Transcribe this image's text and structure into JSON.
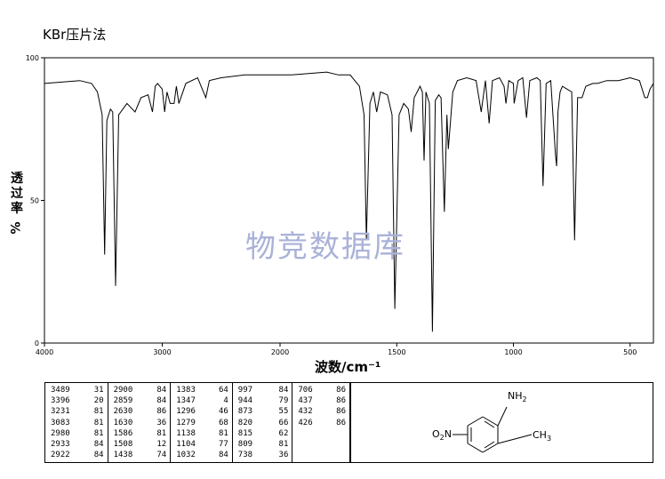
{
  "method_label": "KBr压片法",
  "watermark": "物竞数据库",
  "chart_data": {
    "type": "line",
    "xlabel": "波数/cm⁻¹",
    "ylabel_chars": [
      "透",
      "过",
      "率"
    ],
    "ylabel_unit": "%",
    "x_reversed": true,
    "xlim": [
      4000,
      400
    ],
    "ylim": [
      0,
      100
    ],
    "xticks": [
      4000,
      3000,
      2000,
      1500,
      1000,
      500
    ],
    "yticks": [
      0,
      50,
      100
    ],
    "grid": false,
    "series": [
      {
        "values": [
          [
            4000,
            91
          ],
          [
            3700,
            92
          ],
          [
            3600,
            91
          ],
          [
            3550,
            88
          ],
          [
            3510,
            80
          ],
          [
            3489,
            31
          ],
          [
            3470,
            78
          ],
          [
            3440,
            82
          ],
          [
            3420,
            81
          ],
          [
            3396,
            20
          ],
          [
            3370,
            80
          ],
          [
            3300,
            84
          ],
          [
            3231,
            81
          ],
          [
            3180,
            86
          ],
          [
            3120,
            87
          ],
          [
            3083,
            81
          ],
          [
            3060,
            90
          ],
          [
            3040,
            91
          ],
          [
            3000,
            89
          ],
          [
            2980,
            81
          ],
          [
            2960,
            88
          ],
          [
            2933,
            84
          ],
          [
            2922,
            84
          ],
          [
            2900,
            84
          ],
          [
            2880,
            90
          ],
          [
            2859,
            84
          ],
          [
            2800,
            91
          ],
          [
            2700,
            93
          ],
          [
            2630,
            86
          ],
          [
            2600,
            92
          ],
          [
            2500,
            93
          ],
          [
            2300,
            94
          ],
          [
            2100,
            94
          ],
          [
            1950,
            94
          ],
          [
            1800,
            95
          ],
          [
            1750,
            94
          ],
          [
            1700,
            94
          ],
          [
            1660,
            90
          ],
          [
            1640,
            80
          ],
          [
            1630,
            36
          ],
          [
            1615,
            84
          ],
          [
            1600,
            88
          ],
          [
            1586,
            81
          ],
          [
            1570,
            88
          ],
          [
            1540,
            87
          ],
          [
            1520,
            80
          ],
          [
            1508,
            12
          ],
          [
            1490,
            80
          ],
          [
            1470,
            84
          ],
          [
            1450,
            82
          ],
          [
            1438,
            74
          ],
          [
            1425,
            86
          ],
          [
            1400,
            90
          ],
          [
            1390,
            88
          ],
          [
            1383,
            64
          ],
          [
            1375,
            88
          ],
          [
            1360,
            84
          ],
          [
            1347,
            4
          ],
          [
            1335,
            85
          ],
          [
            1320,
            87
          ],
          [
            1310,
            86
          ],
          [
            1296,
            46
          ],
          [
            1285,
            80
          ],
          [
            1279,
            68
          ],
          [
            1260,
            88
          ],
          [
            1240,
            92
          ],
          [
            1200,
            93
          ],
          [
            1160,
            92
          ],
          [
            1138,
            81
          ],
          [
            1120,
            92
          ],
          [
            1104,
            77
          ],
          [
            1090,
            92
          ],
          [
            1060,
            93
          ],
          [
            1040,
            90
          ],
          [
            1032,
            84
          ],
          [
            1020,
            92
          ],
          [
            1000,
            91
          ],
          [
            997,
            84
          ],
          [
            980,
            92
          ],
          [
            960,
            93
          ],
          [
            944,
            79
          ],
          [
            930,
            92
          ],
          [
            900,
            93
          ],
          [
            885,
            92
          ],
          [
            873,
            55
          ],
          [
            860,
            91
          ],
          [
            840,
            92
          ],
          [
            820,
            66
          ],
          [
            815,
            62
          ],
          [
            809,
            81
          ],
          [
            800,
            88
          ],
          [
            790,
            90
          ],
          [
            770,
            89
          ],
          [
            750,
            88
          ],
          [
            738,
            36
          ],
          [
            725,
            86
          ],
          [
            706,
            86
          ],
          [
            690,
            90
          ],
          [
            660,
            91
          ],
          [
            640,
            91
          ],
          [
            600,
            92
          ],
          [
            550,
            92
          ],
          [
            500,
            93
          ],
          [
            460,
            92
          ],
          [
            437,
            86
          ],
          [
            432,
            86
          ],
          [
            426,
            86
          ],
          [
            415,
            89
          ],
          [
            400,
            91
          ]
        ]
      }
    ]
  },
  "peak_table": {
    "columns": [
      [
        [
          "3489",
          "31"
        ],
        [
          "3396",
          "20"
        ],
        [
          "3231",
          "81"
        ],
        [
          "3083",
          "81"
        ],
        [
          "2980",
          "81"
        ],
        [
          "2933",
          "84"
        ],
        [
          "2922",
          "84"
        ]
      ],
      [
        [
          "2900",
          "84"
        ],
        [
          "2859",
          "84"
        ],
        [
          "2630",
          "86"
        ],
        [
          "1630",
          "36"
        ],
        [
          "1586",
          "81"
        ],
        [
          "1508",
          "12"
        ],
        [
          "1438",
          "74"
        ]
      ],
      [
        [
          "1383",
          "64"
        ],
        [
          "1347",
          "4"
        ],
        [
          "1296",
          "46"
        ],
        [
          "1279",
          "68"
        ],
        [
          "1138",
          "81"
        ],
        [
          "1104",
          "77"
        ],
        [
          "1032",
          "84"
        ]
      ],
      [
        [
          "997",
          "84"
        ],
        [
          "944",
          "79"
        ],
        [
          "873",
          "55"
        ],
        [
          "820",
          "66"
        ],
        [
          "815",
          "62"
        ],
        [
          "809",
          "81"
        ],
        [
          "738",
          "36"
        ]
      ],
      [
        [
          "706",
          "86"
        ],
        [
          "437",
          "86"
        ],
        [
          "432",
          "86"
        ],
        [
          "426",
          "86"
        ]
      ]
    ]
  },
  "structure": {
    "amine_label": "NH",
    "amine_sub": "2",
    "nitro_o": "O",
    "nitro_sub": "2",
    "nitro_n": "N",
    "methyl_label": "CH",
    "methyl_sub": "3"
  }
}
